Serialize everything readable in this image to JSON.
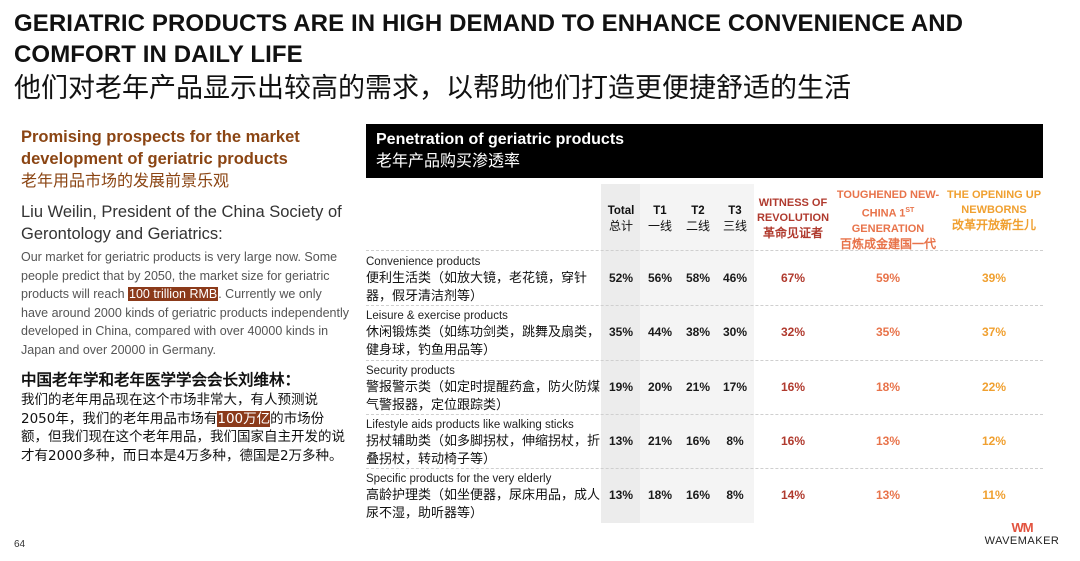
{
  "slide": {
    "title_en": "GERIATRIC PRODUCTS ARE IN HIGH DEMAND TO ENHANCE CONVENIENCE AND COMFORT IN DAILY LIFE",
    "title_zh": "他们对老年产品显示出较高的需求，以帮助他们打造更便捷舒适的生活",
    "page_number": "64"
  },
  "left": {
    "prospect_en": "Promising prospects for the market development of geriatric products",
    "prospect_zh": "老年用品市场的发展前景乐观",
    "liu_name_en": "Liu Weilin, President of the China Society of Gerontology and Geriatrics:",
    "quote_en_before": "Our market for geriatric products is very large now. Some people predict that by 2050, the market size for geriatric products will reach ",
    "quote_en_highlight": "100 trillion RMB",
    "quote_en_after": ". Currently we only have around 2000 kinds of geriatric products independently developed in China, compared with over 40000 kinds in Japan and over 20000 in Germany.",
    "liu_name_zh": "中国老年学和老年医学学会会长刘维林：",
    "quote_zh_before": "我们的老年用品现在这个市场非常大，有人预测说2050年，我们的老年用品市场有",
    "quote_zh_highlight": "100万亿",
    "quote_zh_after": "的市场份额，但我们现在这个老年用品，我们国家自主开发的说才有2000多种，而日本是4万多种，德国是2万多种。"
  },
  "table": {
    "header_en": "Penetration of geriatric products",
    "header_zh": "老年产品购买渗透率",
    "columns": [
      {
        "en": "Total",
        "zh": "总计"
      },
      {
        "en": "T1",
        "zh": "一线"
      },
      {
        "en": "T2",
        "zh": "二线"
      },
      {
        "en": "T3",
        "zh": "三线"
      }
    ],
    "generations": [
      {
        "en": "WITNESS OF REVOLUTION",
        "zh": "革命见证者",
        "color": "#b03a2e"
      },
      {
        "en_main": "TOUGHENED NEW-CHINA 1",
        "en_sup": "ST",
        "en_tail": "GENERATION",
        "zh": "百炼成金建国一代",
        "color": "#e8734a"
      },
      {
        "en": "THE OPENING UP NEWBORNS",
        "zh": "改革开放新生儿",
        "color": "#f0a030"
      }
    ],
    "rows": [
      {
        "en": "Convenience products",
        "zh": "便利生活类（如放大镜，老花镜，穿针器，假牙清洁剂等）",
        "total": "52%",
        "t1": "56%",
        "t2": "58%",
        "t3": "46%",
        "g1": "67%",
        "g2": "59%",
        "g3": "39%"
      },
      {
        "en": "Leisure & exercise products",
        "zh": "休闲锻炼类（如练功剑类，跳舞及扇类，健身球，钓鱼用品等）",
        "total": "35%",
        "t1": "44%",
        "t2": "38%",
        "t3": "30%",
        "g1": "32%",
        "g2": "35%",
        "g3": "37%"
      },
      {
        "en": "Security products",
        "zh": "警报警示类（如定时提醒药盒，防火防煤气警报器，定位跟踪类）",
        "total": "19%",
        "t1": "20%",
        "t2": "21%",
        "t3": "17%",
        "g1": "16%",
        "g2": "18%",
        "g3": "22%"
      },
      {
        "en": "Lifestyle aids products like walking sticks",
        "zh": "拐杖辅助类（如多脚拐杖，伸缩拐杖，折叠拐杖，转动椅子等）",
        "total": "13%",
        "t1": "21%",
        "t2": "16%",
        "t3": "8%",
        "g1": "16%",
        "g2": "13%",
        "g3": "12%"
      },
      {
        "en": "Specific products for the very elderly",
        "zh": "高龄护理类（如坐便器，尿床用品，成人尿不湿，助听器等）",
        "total": "13%",
        "t1": "18%",
        "t2": "16%",
        "t3": "8%",
        "g1": "14%",
        "g2": "13%",
        "g3": "11%"
      }
    ]
  },
  "logo": {
    "mark": "WM",
    "name": "WAVEMAKER"
  },
  "colors": {
    "brown": "#8b4513",
    "highlight": "#8b3a1a",
    "gen1": "#b03a2e",
    "gen2": "#e8734a",
    "gen3": "#f0a030"
  }
}
